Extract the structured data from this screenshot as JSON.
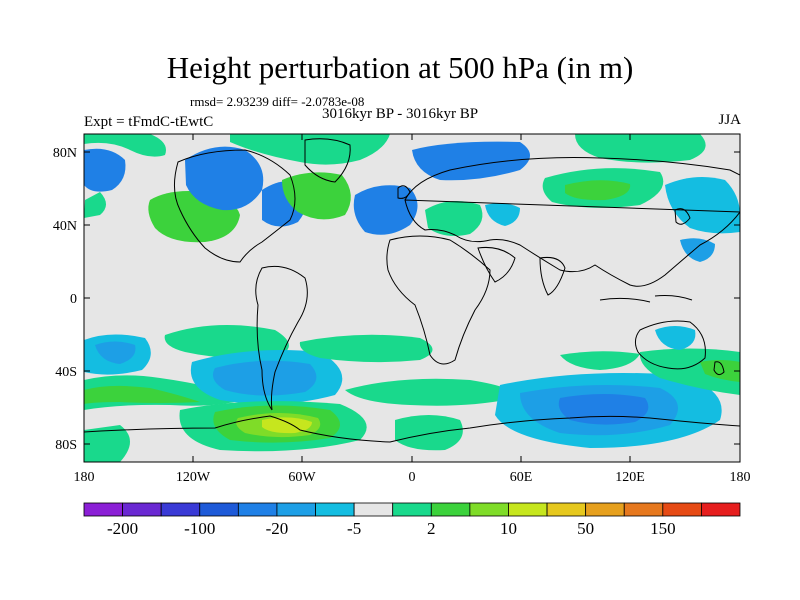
{
  "header": {
    "title": "Height perturbation at 500 hPa (in m)",
    "stats": "rmsd= 2.93239 diff= -2.0783e-08",
    "left_label": "Expt = tFmdC-tEwtC",
    "center_label": "3016kyr BP - 3016kyr BP",
    "right_label": "JJA"
  },
  "map": {
    "lon_ticks": [
      "180",
      "120W",
      "60W",
      "0",
      "60E",
      "120E",
      "180"
    ],
    "lat_ticks": [
      "80N",
      "40N",
      "0",
      "40S",
      "80S"
    ]
  },
  "colorbar": {
    "colors": [
      "#8b1fd6",
      "#6a28d2",
      "#3a3ad6",
      "#1e5ad8",
      "#1f80e6",
      "#1d9fe6",
      "#14bde1",
      "#e6e6e6",
      "#19d98c",
      "#3cd23c",
      "#7fdc28",
      "#c6e61e",
      "#e6c81e",
      "#e6a01e",
      "#e6781e",
      "#e64a14",
      "#e61e1e"
    ],
    "labels": [
      "-200",
      "-100",
      "-20",
      "-5",
      "2",
      "10",
      "50",
      "150"
    ]
  }
}
